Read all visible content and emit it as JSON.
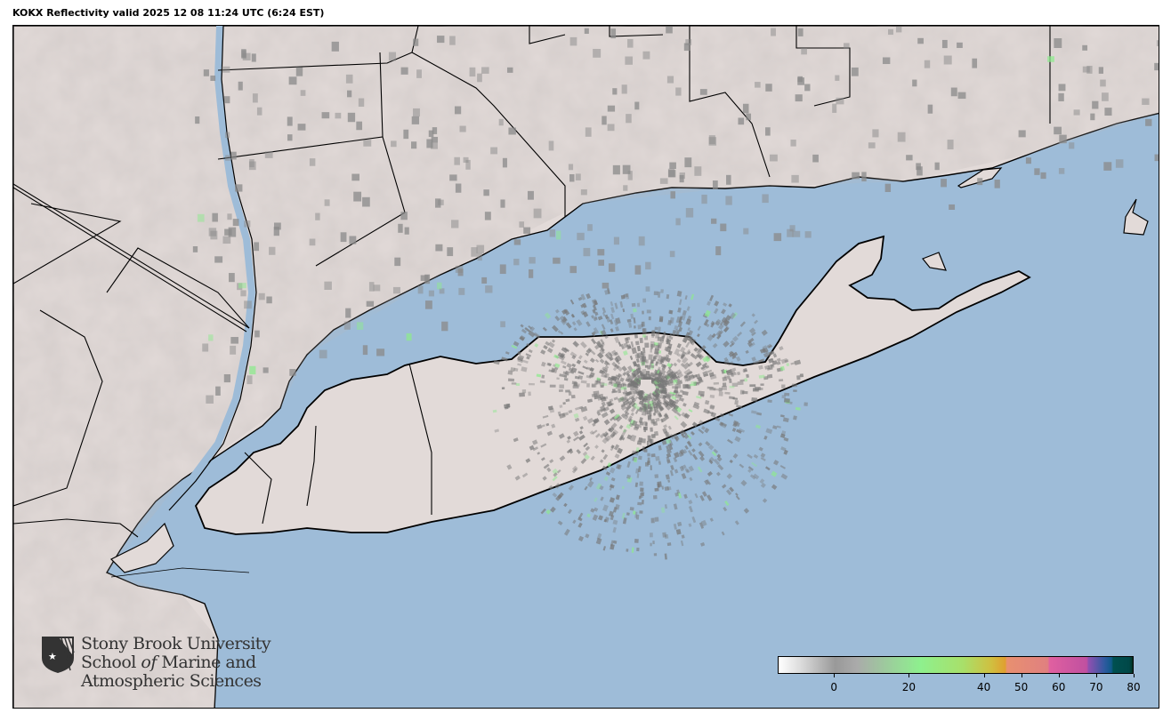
{
  "title": "KOKX Reflectivity valid 2025 12 08 11:24 UTC (6:24 EST)",
  "colors": {
    "ocean": "#9ebcd8",
    "land": "#e2dad8",
    "borders": "#000000",
    "echo_gray": "#8a8a8a",
    "echo_green": "#8ee98e"
  },
  "radar": {
    "site": "KOKX",
    "product": "Reflectivity"
  },
  "colorbar": {
    "units_range": [
      -15,
      80
    ],
    "ticks": [
      "0",
      "20",
      "40",
      "50",
      "60",
      "70",
      "80"
    ],
    "tick_values": [
      0,
      20,
      40,
      50,
      60,
      70,
      80
    ]
  },
  "logo": {
    "line1": "Stony Brook University",
    "line2_a": "School ",
    "line2_b": "of",
    "line2_c": " Marine and",
    "line3": "Atmospheric Sciences"
  }
}
